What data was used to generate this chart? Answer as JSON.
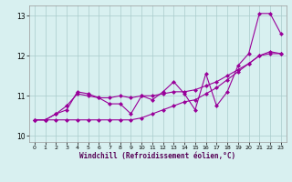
{
  "x": [
    0,
    1,
    2,
    3,
    4,
    5,
    6,
    7,
    8,
    9,
    10,
    11,
    12,
    13,
    14,
    15,
    16,
    17,
    18,
    19,
    20,
    21,
    22,
    23
  ],
  "line_jagged": [
    10.4,
    10.4,
    10.55,
    10.65,
    11.1,
    11.05,
    10.95,
    10.8,
    10.8,
    10.55,
    11.0,
    10.9,
    11.1,
    11.35,
    11.05,
    10.65,
    11.55,
    10.75,
    11.1,
    11.75,
    12.05,
    13.05,
    13.05,
    12.55
  ],
  "line_smooth": [
    10.4,
    10.4,
    10.55,
    10.75,
    11.05,
    11.0,
    10.95,
    10.95,
    11.0,
    10.95,
    11.0,
    11.0,
    11.05,
    11.1,
    11.1,
    11.15,
    11.25,
    11.35,
    11.5,
    11.65,
    11.8,
    12.0,
    12.05,
    12.05
  ],
  "line_low": [
    10.4,
    10.4,
    10.4,
    10.4,
    10.4,
    10.4,
    10.4,
    10.4,
    10.4,
    10.4,
    10.45,
    10.55,
    10.65,
    10.75,
    10.85,
    10.9,
    11.05,
    11.2,
    11.4,
    11.6,
    11.8,
    12.0,
    12.1,
    12.05
  ],
  "color": "#990099",
  "bg_color": "#d8f0f0",
  "grid_color": "#aacccc",
  "xlabel": "Windchill (Refroidissement éolien,°C)",
  "xlim": [
    -0.5,
    23.5
  ],
  "ylim": [
    9.85,
    13.25
  ],
  "yticks": [
    10,
    11,
    12,
    13
  ],
  "xticks": [
    0,
    1,
    2,
    3,
    4,
    5,
    6,
    7,
    8,
    9,
    10,
    11,
    12,
    13,
    14,
    15,
    16,
    17,
    18,
    19,
    20,
    21,
    22,
    23
  ],
  "marker": "D",
  "markersize": 2.5,
  "linewidth": 0.8
}
